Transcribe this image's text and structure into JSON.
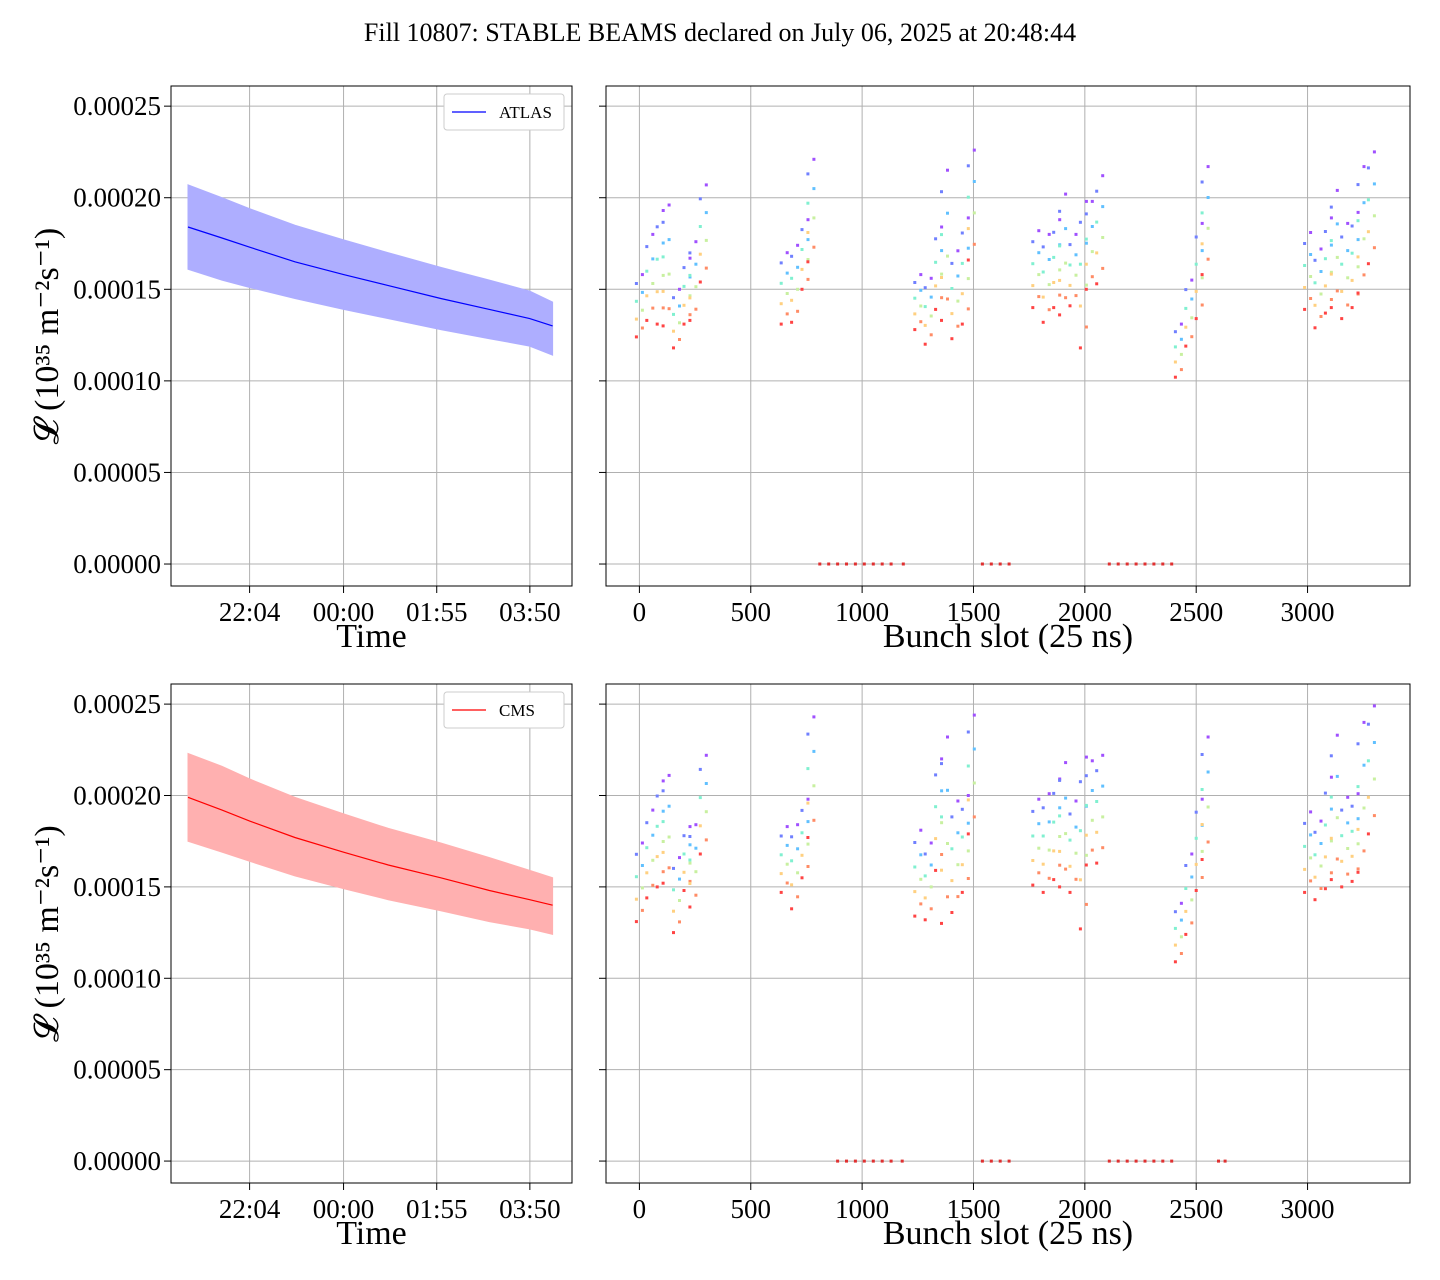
{
  "title": "Fill 10807: STABLE BEAMS declared on July 06, 2025 at 20:48:44",
  "chart_data": [
    {
      "type": "line",
      "panel": "ATLAS vs time",
      "series": [
        {
          "name": "ATLAS",
          "color": "#0000ff",
          "band_color": "#aeaeff",
          "x_hours": [
            20.8,
            21.5,
            22.07,
            23.0,
            24.0,
            24.92,
            26.0,
            27.0,
            27.83,
            28.3
          ],
          "y": [
            0.000184,
            0.000178,
            0.000173,
            0.000165,
            0.000158,
            0.000152,
            0.000145,
            0.000139,
            0.000134,
            0.00013
          ],
          "y_upper": [
            0.000207,
            0.0002,
            0.000194,
            0.000185,
            0.000177,
            0.00017,
            0.000162,
            0.000155,
            0.000149,
            0.000143
          ],
          "y_lower": [
            0.000161,
            0.000155,
            0.000151,
            0.000145,
            0.000139,
            0.000134,
            0.000128,
            0.000123,
            0.000119,
            0.000114
          ]
        }
      ],
      "xlabel": "Time",
      "ylabel": "𝓛 (10³⁵ m⁻²s⁻¹)",
      "x_ticks": [
        "22:04",
        "00:00",
        "01:55",
        "03:50"
      ],
      "x_tick_hours": [
        22.067,
        24.0,
        25.917,
        27.833
      ],
      "xlim_hours": [
        20.45,
        28.7
      ],
      "ylim": [
        -1.2e-05,
        0.000261
      ],
      "y_ticks": [
        "0.00000",
        "0.00005",
        "0.00010",
        "0.00015",
        "0.00020",
        "0.00025"
      ],
      "legend": "upper right",
      "grid": true
    },
    {
      "type": "scatter",
      "panel": "ATLAS per bunch",
      "xlabel": "Bunch slot (25 ns)",
      "x_ticks": [
        "0",
        "500",
        "1000",
        "1500",
        "2000",
        "2500",
        "3000"
      ],
      "xlim": [
        -150,
        3460
      ],
      "ylim": [
        -1.2e-05,
        0.000261
      ],
      "grid": true,
      "palette": [
        "#ff4444",
        "#ff8c66",
        "#ffd080",
        "#c8f0a0",
        "#80f0d0",
        "#60c0ff",
        "#7080ff",
        "#a050ff"
      ],
      "trains": [
        {
          "x": [
            0,
            40,
            80,
            120,
            160,
            200,
            240,
            280
          ],
          "y_low": [
            0.000124,
            0.000133,
            0.000131,
            0.00013,
            0.000118,
            0.000131,
            0.000133,
            0.000154
          ],
          "y_high": [
            0.000158,
            0.00018,
            0.000193,
            0.000196,
            0.00015,
            0.000167,
            0.000176,
            0.000207
          ]
        },
        {
          "x": [
            650,
            690,
            730,
            770
          ],
          "y_low": [
            0.000131,
            0.000132,
            0.00015,
            0.000165
          ],
          "y_high": [
            0.00017,
            0.000174,
            0.000188,
            0.000221
          ]
        },
        {
          "x": [
            1250,
            1290,
            1330,
            1370,
            1410,
            1450,
            1490
          ],
          "y_low": [
            0.000128,
            0.00012,
            0.000139,
            0.000133,
            0.000123,
            0.000131,
            0.000166
          ],
          "y_high": [
            0.000158,
            0.000156,
            0.000184,
            0.000215,
            0.000171,
            0.000189,
            0.000226
          ]
        },
        {
          "x": [
            1780,
            1820,
            1860,
            1900,
            1940,
            1980,
            2020,
            2060
          ],
          "y_low": [
            0.00014,
            0.000132,
            0.00014,
            0.000136,
            0.000141,
            0.000118,
            0.00015,
            0.000153
          ],
          "y_high": [
            0.000182,
            0.00018,
            0.000188,
            0.000202,
            0.00018,
            0.000198,
            0.000198,
            0.000212
          ]
        },
        {
          "x": [
            2420,
            2460,
            2500,
            2540
          ],
          "y_low": [
            0.000102,
            0.000119,
            0.000134,
            0.000158
          ],
          "y_high": [
            0.000131,
            0.000155,
            0.000186,
            0.000217
          ]
        },
        {
          "x": [
            3000,
            3040,
            3080,
            3120,
            3160,
            3200,
            3240,
            3280
          ],
          "y_low": [
            0.000139,
            0.000129,
            0.000137,
            0.00014,
            0.000134,
            0.00014,
            0.000148,
            0.000164
          ],
          "y_high": [
            0.000181,
            0.000172,
            0.000189,
            0.000204,
            0.000186,
            0.000192,
            0.000217,
            0.000225
          ]
        }
      ],
      "zero_points": [
        810,
        850,
        890,
        930,
        970,
        1010,
        1050,
        1090,
        1130,
        1185,
        1540,
        1580,
        1620,
        1660,
        2110,
        2150,
        2190,
        2230,
        2270,
        2310,
        2350,
        2390
      ]
    },
    {
      "type": "line",
      "panel": "CMS vs time",
      "series": [
        {
          "name": "CMS",
          "color": "#ff0000",
          "band_color": "#ffb0b0",
          "x_hours": [
            20.8,
            21.5,
            22.07,
            23.0,
            24.0,
            24.92,
            26.0,
            27.0,
            27.83,
            28.3
          ],
          "y": [
            0.000199,
            0.000192,
            0.000186,
            0.000177,
            0.000169,
            0.000162,
            0.000155,
            0.000148,
            0.000143,
            0.00014
          ],
          "y_upper": [
            0.000223,
            0.000216,
            0.000209,
            0.000199,
            0.00019,
            0.000182,
            0.000174,
            0.000166,
            0.000159,
            0.000155
          ],
          "y_lower": [
            0.000175,
            0.000169,
            0.000164,
            0.000156,
            0.000149,
            0.000143,
            0.000137,
            0.000131,
            0.000127,
            0.000124
          ]
        }
      ],
      "xlabel": "Time",
      "ylabel": "𝓛 (10³⁵ m⁻²s⁻¹)",
      "x_ticks": [
        "22:04",
        "00:00",
        "01:55",
        "03:50"
      ],
      "x_tick_hours": [
        22.067,
        24.0,
        25.917,
        27.833
      ],
      "xlim_hours": [
        20.45,
        28.7
      ],
      "ylim": [
        -1.2e-05,
        0.000261
      ],
      "y_ticks": [
        "0.00000",
        "0.00005",
        "0.00010",
        "0.00015",
        "0.00020",
        "0.00025"
      ],
      "legend": "upper right",
      "grid": true
    },
    {
      "type": "scatter",
      "panel": "CMS per bunch",
      "xlabel": "Bunch slot (25 ns)",
      "x_ticks": [
        "0",
        "500",
        "1000",
        "1500",
        "2000",
        "2500",
        "3000"
      ],
      "xlim": [
        -150,
        3460
      ],
      "ylim": [
        -1.2e-05,
        0.000261
      ],
      "grid": true,
      "palette": [
        "#ff4444",
        "#ff8c66",
        "#ffd080",
        "#c8f0a0",
        "#80f0d0",
        "#60c0ff",
        "#7080ff",
        "#a050ff"
      ],
      "trains": [
        {
          "x": [
            0,
            40,
            80,
            120,
            160,
            200,
            240,
            280
          ],
          "y_low": [
            0.000131,
            0.000144,
            0.00015,
            0.000152,
            0.000125,
            0.000148,
            0.000139,
            0.000168
          ],
          "y_high": [
            0.000174,
            0.000192,
            0.000208,
            0.000211,
            0.000166,
            0.000183,
            0.000184,
            0.000222
          ]
        },
        {
          "x": [
            650,
            690,
            730,
            770
          ],
          "y_low": [
            0.000147,
            0.000138,
            0.000155,
            0.000177
          ],
          "y_high": [
            0.000183,
            0.000184,
            0.000198,
            0.000243
          ]
        },
        {
          "x": [
            1250,
            1290,
            1330,
            1370,
            1410,
            1450,
            1490
          ],
          "y_low": [
            0.000134,
            0.000132,
            0.000159,
            0.00013,
            0.000136,
            0.000147,
            0.000179
          ],
          "y_high": [
            0.000181,
            0.000174,
            0.00022,
            0.000232,
            0.000197,
            0.0002,
            0.000244
          ]
        },
        {
          "x": [
            1780,
            1820,
            1860,
            1900,
            1940,
            1980,
            2020,
            2060
          ],
          "y_low": [
            0.000151,
            0.000147,
            0.000154,
            0.00015,
            0.000147,
            0.000127,
            0.000162,
            0.000163
          ],
          "y_high": [
            0.000198,
            0.000201,
            0.000209,
            0.000218,
            0.000197,
            0.000221,
            0.000219,
            0.000222
          ]
        },
        {
          "x": [
            2420,
            2460,
            2500,
            2540
          ],
          "y_low": [
            0.000109,
            0.000124,
            0.000148,
            0.000165
          ],
          "y_high": [
            0.000141,
            0.000168,
            0.000198,
            0.000232
          ]
        },
        {
          "x": [
            3000,
            3040,
            3080,
            3120,
            3160,
            3200,
            3240,
            3280
          ],
          "y_low": [
            0.000147,
            0.000143,
            0.000149,
            0.000154,
            0.00015,
            0.000153,
            0.000158,
            0.000179
          ],
          "y_high": [
            0.000191,
            0.000186,
            0.00021,
            0.000233,
            0.000199,
            0.000201,
            0.00024,
            0.000249
          ]
        }
      ],
      "zero_points": [
        890,
        930,
        970,
        1010,
        1050,
        1090,
        1130,
        1180,
        1540,
        1580,
        1620,
        1660,
        2110,
        2150,
        2190,
        2230,
        2270,
        2310,
        2350,
        2390,
        2600,
        2630
      ]
    }
  ]
}
